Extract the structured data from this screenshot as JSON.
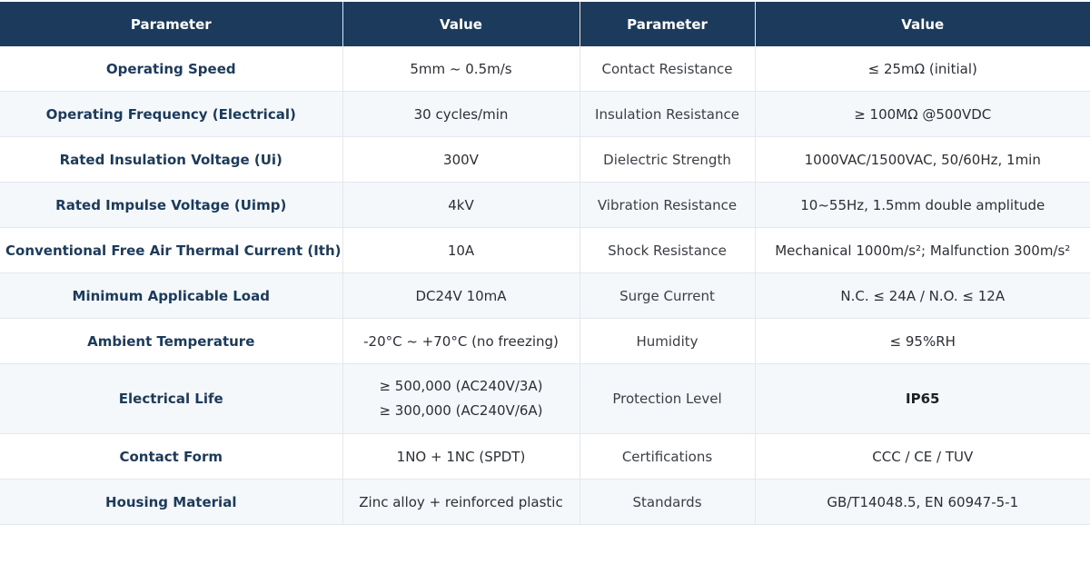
{
  "headers": [
    "Parameter",
    "Value",
    "Parameter",
    "Value"
  ],
  "rows": [
    {
      "p1": "Operating Speed",
      "v1": "5mm ~ 0.5m/s",
      "p2": "Contact Resistance",
      "v2": "≤ 25mΩ (initial)"
    },
    {
      "p1": "Operating Frequency (Electrical)",
      "v1": "30 cycles/min",
      "p2": "Insulation Resistance",
      "v2": "≥ 100MΩ @500VDC"
    },
    {
      "p1": "Rated Insulation Voltage (Ui)",
      "v1": "300V",
      "p2": "Dielectric Strength",
      "v2": "1000VAC/1500VAC, 50/60Hz, 1min"
    },
    {
      "p1": "Rated Impulse Voltage (Uimp)",
      "v1": "4kV",
      "p2": "Vibration Resistance",
      "v2": "10~55Hz, 1.5mm double amplitude"
    },
    {
      "p1": "Conventional Free Air Thermal Current (Ith)",
      "v1": "10A",
      "p2": "Shock Resistance",
      "v2": "Mechanical 1000m/s²; Malfunction 300m/s²"
    },
    {
      "p1": "Minimum Applicable Load",
      "v1": "DC24V 10mA",
      "p2": "Surge Current",
      "v2": "N.C. ≤ 24A / N.O. ≤ 12A"
    },
    {
      "p1": "Ambient Temperature",
      "v1": "-20°C ~ +70°C (no freezing)",
      "p2": "Humidity",
      "v2": "≤ 95%RH"
    },
    {
      "p1": "Electrical Life",
      "v1_line1": "≥ 500,000 (AC240V/3A)",
      "v1_line2": "≥ 300,000 (AC240V/6A)",
      "p2": "Protection Level",
      "v2": "IP65"
    },
    {
      "p1": "Contact Form",
      "v1": "1NO + 1NC (SPDT)",
      "p2": "Certifications",
      "v2": "CCC / CE / TUV"
    },
    {
      "p1": "Housing Material",
      "v1": "Zinc alloy + reinforced plastic",
      "p2": "Standards",
      "v2": "GB/T14048.5, EN 60947-5-1"
    }
  ],
  "colors": {
    "header_bg": "#1b3a5c",
    "header_text": "#ffffff",
    "param_text": "#1b3a5c",
    "row_alt_bg": "#f5f8fb",
    "border": "#e3e8ee"
  }
}
